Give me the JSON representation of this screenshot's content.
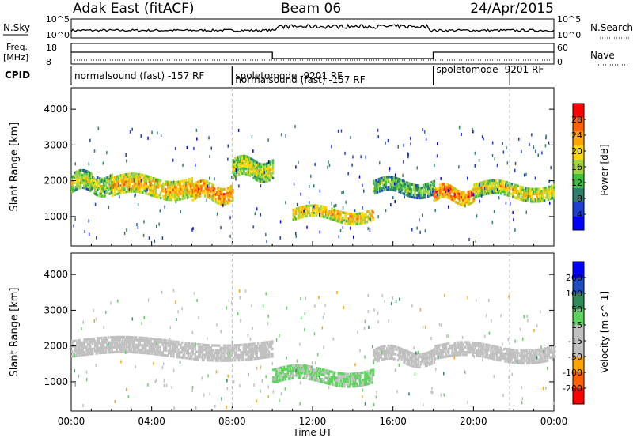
{
  "header": {
    "station": "Adak East (fitACF)",
    "beam": "Beam 06",
    "date": "24/Apr/2015"
  },
  "strip_labels": {
    "nsky": "N.Sky",
    "nsearch": "N.Search",
    "freq_l1": "Freq.",
    "freq_l2": "[MHz]",
    "nave": "Nave",
    "cpid": "CPID",
    "nsky_ticks": [
      "10^5",
      "10^0"
    ],
    "nsearch_ticks": [
      "10^5",
      "10^0"
    ],
    "freq_ticks": [
      "18",
      "8"
    ],
    "nave_ticks": [
      "60",
      "0"
    ]
  },
  "cpid_segments": [
    {
      "label": "normalsound (fast) -157 RF",
      "start": 0.0,
      "end": 8.0
    },
    {
      "label": "spoletomode -9201 RF",
      "start": 8.0,
      "end": 10.0
    },
    {
      "label": "normalsound (fast) -157 RF",
      "start": 8.0,
      "end": 18.0
    },
    {
      "label": "spoletomode -9201 RF",
      "start": 18.0,
      "end": 21.8
    }
  ],
  "colors": {
    "power_scale": [
      "#0000ff",
      "#1f3fcf",
      "#2e7f6e",
      "#3fbf3f",
      "#9fd33f",
      "#ffd700",
      "#ffa500",
      "#ff6000",
      "#ff0000"
    ],
    "velocity_scale": [
      "#0000ff",
      "#1f4fbf",
      "#2e8b57",
      "#5fd35f",
      "#c0c0c0",
      "#c0c0c0",
      "#ffa500",
      "#ff6000",
      "#ff0000"
    ]
  },
  "chart_data": [
    {
      "type": "heatmap",
      "panel": "power",
      "xlabel": "",
      "ylabel": "Slant Range [km]",
      "xlim": [
        0,
        24
      ],
      "ylim": [
        180,
        4600
      ],
      "yticks": [
        1000,
        2000,
        3000,
        4000
      ],
      "colorbar": {
        "label": "Power [dB]",
        "ticks": [
          "28",
          "24",
          "20",
          "16",
          "12",
          "8",
          "4"
        ],
        "range": [
          0,
          30
        ]
      },
      "echo_bands": [
        {
          "t_start": 0.0,
          "t_end": 2.0,
          "range_center": 1900,
          "width": 500,
          "power": 14
        },
        {
          "t_start": 2.0,
          "t_end": 6.0,
          "range_center": 1800,
          "width": 500,
          "power": 18
        },
        {
          "t_start": 6.0,
          "t_end": 8.0,
          "range_center": 1650,
          "width": 450,
          "power": 21
        },
        {
          "t_start": 8.0,
          "t_end": 10.0,
          "range_center": 2300,
          "width": 500,
          "power": 15
        },
        {
          "t_start": 11.0,
          "t_end": 15.0,
          "range_center": 1050,
          "width": 350,
          "power": 18
        },
        {
          "t_start": 15.0,
          "t_end": 18.0,
          "range_center": 1800,
          "width": 400,
          "power": 11
        },
        {
          "t_start": 18.0,
          "t_end": 20.0,
          "range_center": 1600,
          "width": 400,
          "power": 22
        },
        {
          "t_start": 20.0,
          "t_end": 24.0,
          "range_center": 1700,
          "width": 400,
          "power": 16
        }
      ]
    },
    {
      "type": "heatmap",
      "panel": "velocity",
      "xlabel": "Time UT",
      "ylabel": "Slant Range [km]",
      "xlim": [
        0,
        24
      ],
      "ylim": [
        180,
        4600
      ],
      "yticks": [
        1000,
        2000,
        3000,
        4000
      ],
      "xticks": [
        "00:00",
        "04:00",
        "08:00",
        "12:00",
        "16:00",
        "20:00",
        "00:00"
      ],
      "colorbar": {
        "label": "Velocity [m s^-1]",
        "ticks": [
          "200",
          "100",
          "50",
          "15",
          "-15",
          "-50",
          "-100",
          "-200"
        ],
        "range": [
          -250,
          250
        ]
      },
      "echo_bands": [
        {
          "t_start": 0.0,
          "t_end": 10.0,
          "range_center": 1900,
          "width": 450,
          "velocity": 0
        },
        {
          "t_start": 10.0,
          "t_end": 15.0,
          "range_center": 1150,
          "width": 400,
          "velocity": 35
        },
        {
          "t_start": 15.0,
          "t_end": 18.0,
          "range_center": 1700,
          "width": 400,
          "velocity": 0
        },
        {
          "t_start": 18.0,
          "t_end": 24.0,
          "range_center": 1800,
          "width": 400,
          "velocity": 0
        }
      ]
    }
  ]
}
